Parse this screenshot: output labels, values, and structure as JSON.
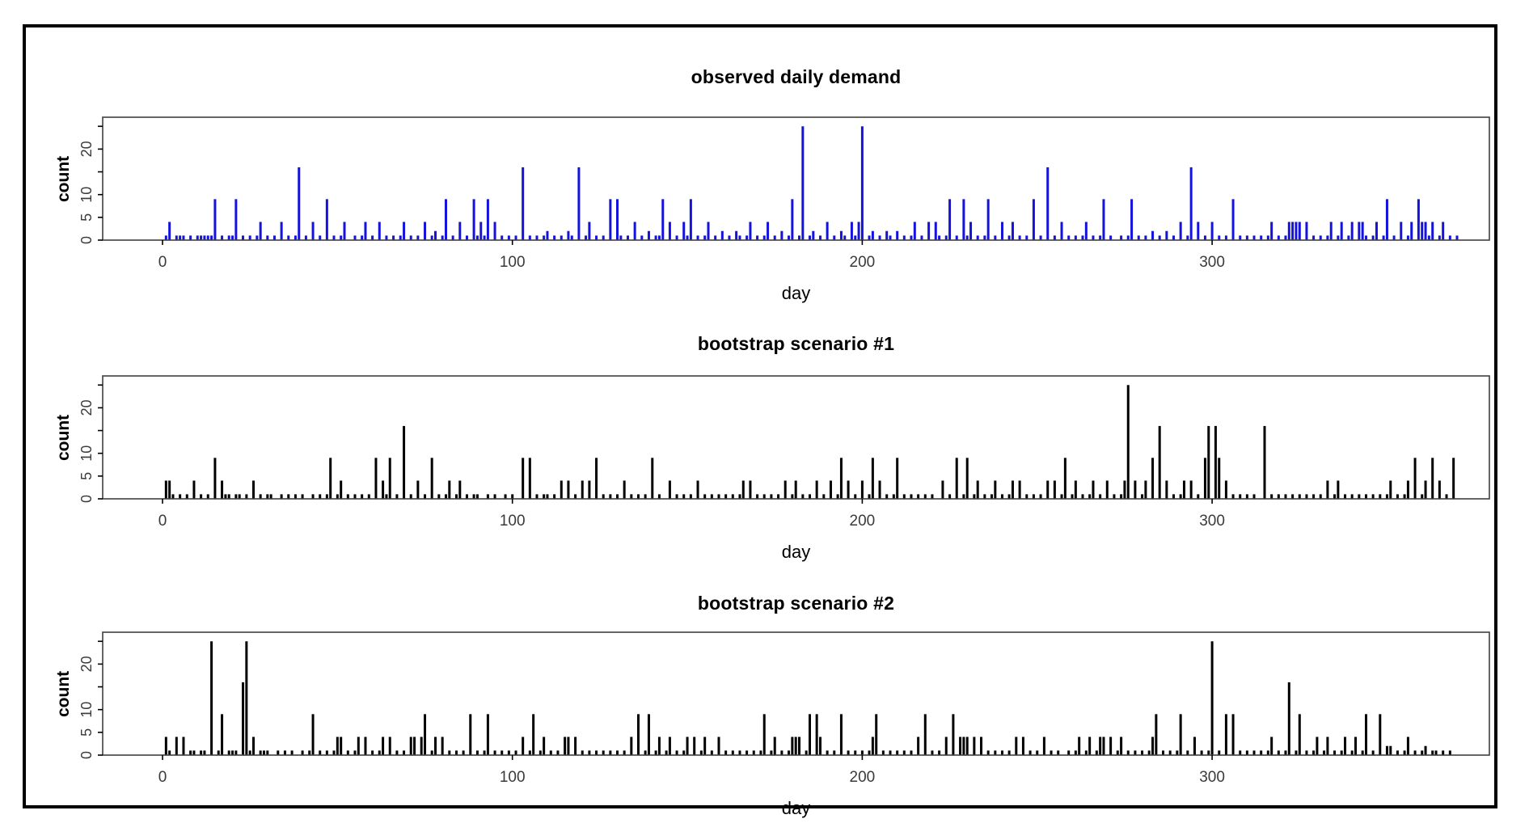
{
  "page": {
    "background": "#ffffff",
    "frame_border_color": "#000000"
  },
  "chart_data": [
    {
      "type": "bar",
      "title": "observed daily demand",
      "xlabel": "day",
      "ylabel": "count",
      "bar_color": "#1313dd",
      "axis_color": "#404040",
      "tick_label_color": "#3a3a3a",
      "xlim": [
        -17,
        380
      ],
      "ylim": [
        0,
        27
      ],
      "grid": false,
      "legend": null,
      "x_ticks": [
        0,
        100,
        200,
        300
      ],
      "y_ticks": [
        {
          "v": 0,
          "label": "0"
        },
        {
          "v": 5,
          "label": "5"
        },
        {
          "v": 10,
          "label": "10"
        },
        {
          "v": 15,
          "label": ""
        },
        {
          "v": 20,
          "label": "20"
        },
        {
          "v": 25,
          "label": ""
        }
      ],
      "spikes": [
        [
          2,
          4
        ],
        [
          15,
          9
        ],
        [
          21,
          9
        ],
        [
          28,
          4
        ],
        [
          34,
          4
        ],
        [
          39,
          16
        ],
        [
          43,
          4
        ],
        [
          47,
          9
        ],
        [
          52,
          4
        ],
        [
          58,
          4
        ],
        [
          62,
          4
        ],
        [
          69,
          4
        ],
        [
          75,
          4
        ],
        [
          78,
          2
        ],
        [
          81,
          9
        ],
        [
          85,
          4
        ],
        [
          89,
          9
        ],
        [
          91,
          4
        ],
        [
          93,
          9
        ],
        [
          95,
          4
        ],
        [
          103,
          16
        ],
        [
          110,
          2
        ],
        [
          116,
          2
        ],
        [
          119,
          16
        ],
        [
          122,
          4
        ],
        [
          128,
          9
        ],
        [
          130,
          9
        ],
        [
          135,
          4
        ],
        [
          139,
          2
        ],
        [
          143,
          9
        ],
        [
          145,
          4
        ],
        [
          149,
          4
        ],
        [
          151,
          9
        ],
        [
          156,
          4
        ],
        [
          160,
          2
        ],
        [
          164,
          2
        ],
        [
          168,
          4
        ],
        [
          173,
          4
        ],
        [
          177,
          2
        ],
        [
          180,
          9
        ],
        [
          183,
          25
        ],
        [
          186,
          2
        ],
        [
          190,
          4
        ],
        [
          194,
          2
        ],
        [
          197,
          4
        ],
        [
          199,
          4
        ],
        [
          200,
          25
        ],
        [
          203,
          2
        ],
        [
          207,
          2
        ],
        [
          210,
          2
        ],
        [
          215,
          4
        ],
        [
          219,
          4
        ],
        [
          221,
          4
        ],
        [
          225,
          9
        ],
        [
          229,
          9
        ],
        [
          231,
          4
        ],
        [
          236,
          9
        ],
        [
          240,
          4
        ],
        [
          243,
          4
        ],
        [
          249,
          9
        ],
        [
          253,
          16
        ],
        [
          257,
          4
        ],
        [
          264,
          4
        ],
        [
          269,
          9
        ],
        [
          277,
          9
        ],
        [
          283,
          2
        ],
        [
          287,
          2
        ],
        [
          291,
          4
        ],
        [
          294,
          16
        ],
        [
          296,
          4
        ],
        [
          300,
          4
        ],
        [
          306,
          9
        ],
        [
          317,
          4
        ],
        [
          322,
          4
        ],
        [
          323,
          4
        ],
        [
          324,
          4
        ],
        [
          325,
          4
        ],
        [
          327,
          4
        ],
        [
          334,
          4
        ],
        [
          337,
          4
        ],
        [
          340,
          4
        ],
        [
          342,
          4
        ],
        [
          343,
          4
        ],
        [
          347,
          4
        ],
        [
          350,
          9
        ],
        [
          354,
          4
        ],
        [
          357,
          4
        ],
        [
          359,
          9
        ],
        [
          360,
          4
        ],
        [
          361,
          4
        ],
        [
          363,
          4
        ],
        [
          366,
          4
        ]
      ],
      "ones": [
        1,
        4,
        5,
        6,
        8,
        10,
        11,
        12,
        13,
        14,
        17,
        19,
        20,
        23,
        25,
        27,
        30,
        32,
        36,
        38,
        41,
        45,
        49,
        51,
        55,
        57,
        60,
        64,
        66,
        68,
        71,
        73,
        77,
        80,
        83,
        87,
        90,
        92,
        97,
        99,
        101,
        105,
        107,
        109,
        112,
        114,
        117,
        121,
        124,
        126,
        131,
        133,
        137,
        141,
        142,
        147,
        150,
        153,
        155,
        158,
        162,
        165,
        167,
        170,
        172,
        175,
        179,
        182,
        185,
        188,
        192,
        195,
        198,
        202,
        205,
        208,
        212,
        214,
        217,
        222,
        224,
        227,
        230,
        233,
        235,
        238,
        242,
        245,
        247,
        251,
        255,
        259,
        261,
        263,
        266,
        268,
        271,
        274,
        276,
        279,
        281,
        285,
        289,
        293,
        298,
        302,
        304,
        308,
        310,
        312,
        314,
        316,
        319,
        321,
        329,
        331,
        333,
        336,
        339,
        344,
        346,
        349,
        352,
        356,
        362,
        365,
        368,
        370
      ]
    },
    {
      "type": "bar",
      "title": "bootstrap scenario #1",
      "xlabel": "day",
      "ylabel": "count",
      "bar_color": "#000000",
      "axis_color": "#404040",
      "tick_label_color": "#3a3a3a",
      "xlim": [
        -17,
        380
      ],
      "ylim": [
        0,
        27
      ],
      "grid": false,
      "legend": null,
      "x_ticks": [
        0,
        100,
        200,
        300
      ],
      "y_ticks": [
        {
          "v": 0,
          "label": "0"
        },
        {
          "v": 5,
          "label": "5"
        },
        {
          "v": 10,
          "label": "10"
        },
        {
          "v": 15,
          "label": ""
        },
        {
          "v": 20,
          "label": "20"
        },
        {
          "v": 25,
          "label": ""
        }
      ],
      "spikes": [
        [
          1,
          4
        ],
        [
          2,
          4
        ],
        [
          9,
          4
        ],
        [
          15,
          9
        ],
        [
          17,
          4
        ],
        [
          26,
          4
        ],
        [
          48,
          9
        ],
        [
          51,
          4
        ],
        [
          61,
          9
        ],
        [
          63,
          4
        ],
        [
          65,
          9
        ],
        [
          69,
          16
        ],
        [
          73,
          4
        ],
        [
          77,
          9
        ],
        [
          82,
          4
        ],
        [
          85,
          4
        ],
        [
          103,
          9
        ],
        [
          105,
          9
        ],
        [
          114,
          4
        ],
        [
          116,
          4
        ],
        [
          120,
          4
        ],
        [
          122,
          4
        ],
        [
          124,
          9
        ],
        [
          132,
          4
        ],
        [
          140,
          9
        ],
        [
          145,
          4
        ],
        [
          153,
          4
        ],
        [
          166,
          4
        ],
        [
          168,
          4
        ],
        [
          178,
          4
        ],
        [
          181,
          4
        ],
        [
          187,
          4
        ],
        [
          191,
          4
        ],
        [
          194,
          9
        ],
        [
          196,
          4
        ],
        [
          200,
          4
        ],
        [
          203,
          9
        ],
        [
          205,
          4
        ],
        [
          210,
          9
        ],
        [
          223,
          4
        ],
        [
          227,
          9
        ],
        [
          230,
          9
        ],
        [
          233,
          4
        ],
        [
          238,
          4
        ],
        [
          243,
          4
        ],
        [
          245,
          4
        ],
        [
          253,
          4
        ],
        [
          255,
          4
        ],
        [
          258,
          9
        ],
        [
          261,
          4
        ],
        [
          266,
          4
        ],
        [
          270,
          4
        ],
        [
          275,
          4
        ],
        [
          276,
          25
        ],
        [
          278,
          4
        ],
        [
          281,
          4
        ],
        [
          283,
          9
        ],
        [
          285,
          16
        ],
        [
          287,
          4
        ],
        [
          292,
          4
        ],
        [
          294,
          4
        ],
        [
          298,
          9
        ],
        [
          299,
          16
        ],
        [
          301,
          16
        ],
        [
          302,
          9
        ],
        [
          304,
          4
        ],
        [
          315,
          16
        ],
        [
          333,
          4
        ],
        [
          336,
          4
        ],
        [
          351,
          4
        ],
        [
          356,
          4
        ],
        [
          358,
          9
        ],
        [
          361,
          4
        ],
        [
          363,
          9
        ],
        [
          365,
          4
        ],
        [
          369,
          9
        ]
      ],
      "ones": [
        3,
        5,
        7,
        11,
        13,
        18,
        19,
        21,
        22,
        24,
        28,
        30,
        31,
        34,
        36,
        38,
        40,
        43,
        45,
        47,
        50,
        53,
        55,
        57,
        59,
        64,
        67,
        71,
        75,
        79,
        81,
        84,
        87,
        89,
        90,
        93,
        95,
        98,
        100,
        107,
        109,
        110,
        112,
        118,
        126,
        128,
        130,
        134,
        136,
        138,
        142,
        147,
        149,
        151,
        155,
        157,
        159,
        161,
        163,
        165,
        170,
        172,
        174,
        176,
        180,
        183,
        185,
        189,
        193,
        198,
        202,
        207,
        209,
        212,
        214,
        216,
        218,
        220,
        225,
        229,
        232,
        235,
        237,
        240,
        242,
        247,
        249,
        251,
        257,
        260,
        263,
        265,
        268,
        272,
        274,
        280,
        289,
        291,
        296,
        306,
        308,
        310,
        312,
        317,
        319,
        321,
        323,
        325,
        327,
        329,
        331,
        335,
        338,
        340,
        342,
        344,
        346,
        348,
        350,
        353,
        355,
        360,
        367
      ]
    },
    {
      "type": "bar",
      "title": "bootstrap scenario #2",
      "xlabel": "day",
      "ylabel": "count",
      "bar_color": "#000000",
      "axis_color": "#404040",
      "tick_label_color": "#3a3a3a",
      "xlim": [
        -17,
        380
      ],
      "ylim": [
        0,
        27
      ],
      "grid": false,
      "legend": null,
      "x_ticks": [
        0,
        100,
        200,
        300
      ],
      "y_ticks": [
        {
          "v": 0,
          "label": "0"
        },
        {
          "v": 5,
          "label": "5"
        },
        {
          "v": 10,
          "label": "10"
        },
        {
          "v": 15,
          "label": ""
        },
        {
          "v": 20,
          "label": "20"
        },
        {
          "v": 25,
          "label": ""
        }
      ],
      "spikes": [
        [
          1,
          4
        ],
        [
          4,
          4
        ],
        [
          6,
          4
        ],
        [
          14,
          25
        ],
        [
          17,
          9
        ],
        [
          23,
          16
        ],
        [
          24,
          25
        ],
        [
          26,
          4
        ],
        [
          43,
          9
        ],
        [
          50,
          4
        ],
        [
          51,
          4
        ],
        [
          56,
          4
        ],
        [
          58,
          4
        ],
        [
          63,
          4
        ],
        [
          65,
          4
        ],
        [
          71,
          4
        ],
        [
          72,
          4
        ],
        [
          74,
          4
        ],
        [
          75,
          9
        ],
        [
          78,
          4
        ],
        [
          80,
          4
        ],
        [
          88,
          9
        ],
        [
          93,
          9
        ],
        [
          103,
          4
        ],
        [
          106,
          9
        ],
        [
          109,
          4
        ],
        [
          115,
          4
        ],
        [
          116,
          4
        ],
        [
          118,
          4
        ],
        [
          134,
          4
        ],
        [
          136,
          9
        ],
        [
          139,
          9
        ],
        [
          142,
          4
        ],
        [
          145,
          4
        ],
        [
          150,
          4
        ],
        [
          152,
          4
        ],
        [
          155,
          4
        ],
        [
          159,
          4
        ],
        [
          172,
          9
        ],
        [
          175,
          4
        ],
        [
          180,
          4
        ],
        [
          181,
          4
        ],
        [
          182,
          4
        ],
        [
          185,
          9
        ],
        [
          187,
          9
        ],
        [
          188,
          4
        ],
        [
          194,
          9
        ],
        [
          203,
          4
        ],
        [
          204,
          9
        ],
        [
          216,
          4
        ],
        [
          218,
          9
        ],
        [
          224,
          4
        ],
        [
          226,
          9
        ],
        [
          228,
          4
        ],
        [
          229,
          4
        ],
        [
          230,
          4
        ],
        [
          232,
          4
        ],
        [
          234,
          4
        ],
        [
          244,
          4
        ],
        [
          246,
          4
        ],
        [
          252,
          4
        ],
        [
          262,
          4
        ],
        [
          265,
          4
        ],
        [
          268,
          4
        ],
        [
          269,
          4
        ],
        [
          271,
          4
        ],
        [
          274,
          4
        ],
        [
          283,
          4
        ],
        [
          284,
          9
        ],
        [
          291,
          9
        ],
        [
          295,
          4
        ],
        [
          300,
          25
        ],
        [
          304,
          9
        ],
        [
          306,
          9
        ],
        [
          317,
          4
        ],
        [
          322,
          16
        ],
        [
          325,
          9
        ],
        [
          330,
          4
        ],
        [
          333,
          4
        ],
        [
          338,
          4
        ],
        [
          341,
          4
        ],
        [
          344,
          9
        ],
        [
          348,
          9
        ],
        [
          350,
          2
        ],
        [
          351,
          2
        ],
        [
          356,
          4
        ],
        [
          361,
          2
        ]
      ],
      "ones": [
        2,
        8,
        9,
        11,
        12,
        16,
        19,
        20,
        21,
        25,
        28,
        29,
        30,
        33,
        35,
        37,
        40,
        42,
        45,
        47,
        49,
        53,
        55,
        60,
        62,
        67,
        69,
        77,
        82,
        84,
        86,
        90,
        92,
        95,
        97,
        99,
        101,
        105,
        108,
        111,
        113,
        120,
        122,
        124,
        126,
        128,
        130,
        132,
        138,
        141,
        144,
        147,
        149,
        154,
        157,
        161,
        163,
        165,
        167,
        169,
        171,
        174,
        177,
        179,
        184,
        190,
        192,
        196,
        198,
        200,
        202,
        206,
        208,
        210,
        212,
        214,
        220,
        222,
        236,
        238,
        240,
        242,
        248,
        250,
        254,
        256,
        259,
        261,
        264,
        267,
        273,
        276,
        278,
        280,
        282,
        286,
        288,
        290,
        293,
        297,
        299,
        302,
        308,
        310,
        312,
        314,
        316,
        319,
        321,
        324,
        327,
        329,
        332,
        335,
        337,
        340,
        343,
        346,
        353,
        355,
        358,
        360,
        363,
        364,
        366,
        368
      ]
    }
  ]
}
